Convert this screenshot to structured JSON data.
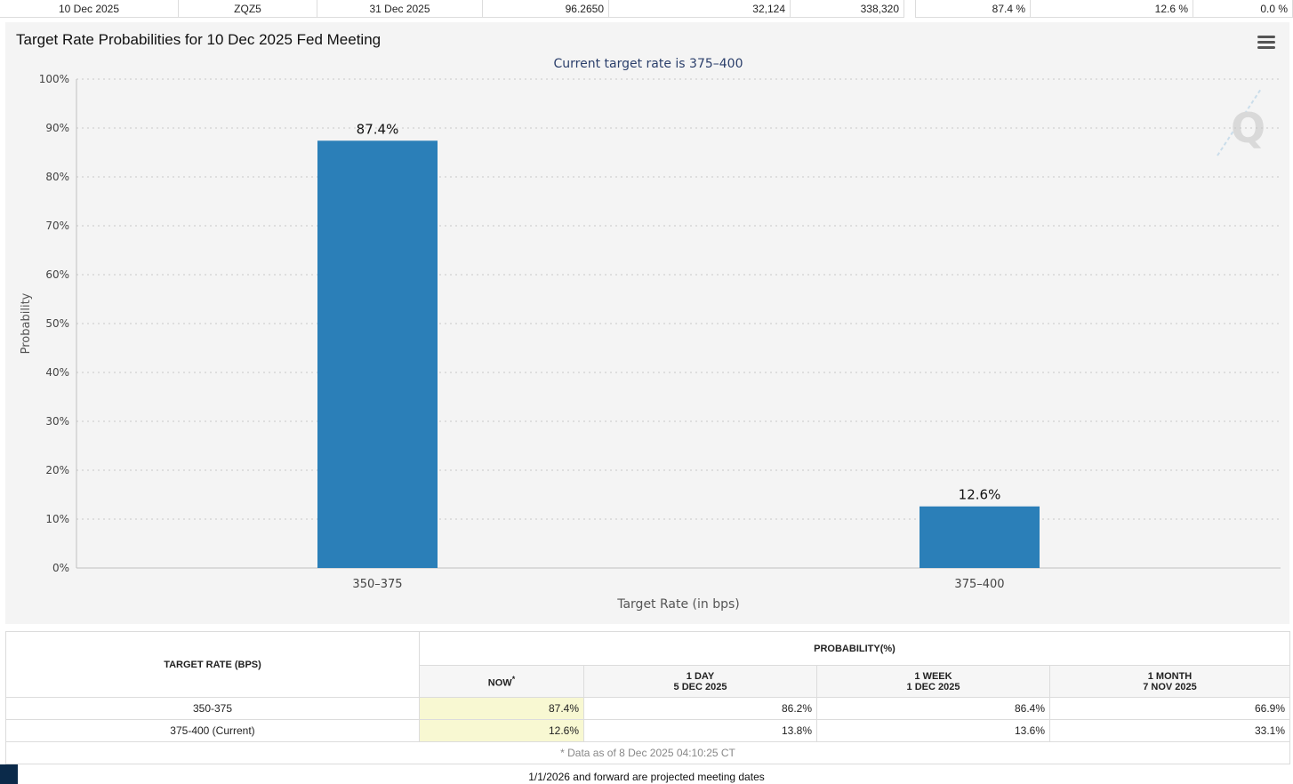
{
  "top_row": {
    "meeting_date": "10 Dec 2025",
    "contract": "ZQZ5",
    "expires": "31 Dec 2025",
    "mid_price": "96.2650",
    "prior_volume": "32,124",
    "prior_oi": "338,320",
    "prob_ease": "87.4 %",
    "prob_no_change": "12.6 %",
    "prob_hike": "0.0 %"
  },
  "chart_title": "Target Rate Probabilities for 10 Dec 2025 Fed Meeting",
  "chart_data": {
    "type": "bar",
    "title": "Target Rate Probabilities for 10 Dec 2025 Fed Meeting",
    "subtitle": "Current target rate is 375–400",
    "xlabel": "Target Rate (in bps)",
    "ylabel": "Probability",
    "categories": [
      "350–375",
      "375–400"
    ],
    "values": [
      87.4,
      12.6
    ],
    "data_labels": [
      "87.4%",
      "12.6%"
    ],
    "ylim": [
      0,
      100
    ],
    "yticks": [
      "0%",
      "10%",
      "20%",
      "30%",
      "40%",
      "50%",
      "60%",
      "70%",
      "80%",
      "90%",
      "100%"
    ],
    "grid": true,
    "bar_color": "#2b7fb8",
    "legend": "none"
  },
  "table": {
    "col_target": "TARGET RATE (BPS)",
    "col_prob": "PROBABILITY(%)",
    "sub_now": "NOW",
    "sub_now_mark": "*",
    "sub_1day_a": "1 DAY",
    "sub_1day_b": "5 DEC 2025",
    "sub_1week_a": "1 WEEK",
    "sub_1week_b": "1 DEC 2025",
    "sub_1month_a": "1 MONTH",
    "sub_1month_b": "7 NOV 2025",
    "rows": [
      {
        "rate": "350-375",
        "now": "87.4%",
        "day": "86.2%",
        "week": "86.4%",
        "month": "66.9%"
      },
      {
        "rate": "375-400 (Current)",
        "now": "12.6%",
        "day": "13.8%",
        "week": "13.6%",
        "month": "33.1%"
      }
    ],
    "footnote": "* Data as of 8 Dec 2025 04:10:25 CT"
  },
  "bottom_note": "1/1/2026 and forward are projected meeting dates",
  "icons": {
    "menu": "hamburger-menu-icon",
    "watermark": "q-logo-watermark"
  }
}
